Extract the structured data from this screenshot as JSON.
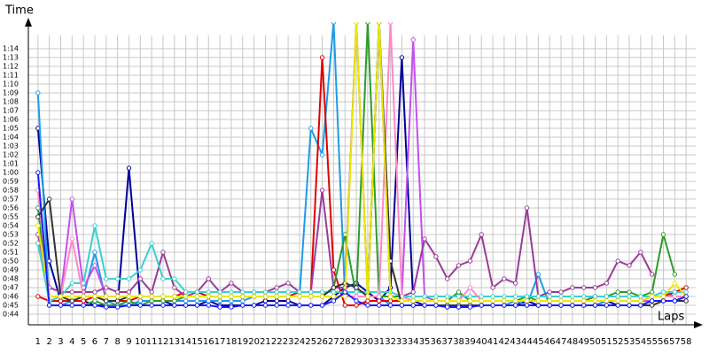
{
  "chart_data": {
    "type": "line",
    "y_label": "Time",
    "x_label": "Laps",
    "x": [
      1,
      2,
      3,
      4,
      5,
      6,
      7,
      8,
      9,
      10,
      11,
      12,
      13,
      14,
      15,
      16,
      17,
      18,
      19,
      20,
      21,
      22,
      23,
      24,
      25,
      26,
      27,
      28,
      29,
      30,
      31,
      32,
      33,
      34,
      35,
      36,
      37,
      38,
      39,
      40,
      41,
      42,
      43,
      44,
      45,
      46,
      47,
      48,
      49,
      50,
      51,
      52,
      53,
      54,
      55,
      56,
      57,
      58
    ],
    "xlim": [
      0,
      59
    ],
    "ylim": [
      43,
      77
    ],
    "grid": true,
    "yticks": [
      {
        "value": 44,
        "label": "0:44"
      },
      {
        "value": 45,
        "label": "0:45"
      },
      {
        "value": 46,
        "label": "0:46"
      },
      {
        "value": 47,
        "label": "0:47"
      },
      {
        "value": 48,
        "label": "0:48"
      },
      {
        "value": 49,
        "label": "0:49"
      },
      {
        "value": 50,
        "label": "0:50"
      },
      {
        "value": 51,
        "label": "0:51"
      },
      {
        "value": 52,
        "label": "0:52"
      },
      {
        "value": 53,
        "label": "0:53"
      },
      {
        "value": 54,
        "label": "0:54"
      },
      {
        "value": 55,
        "label": "0:55"
      },
      {
        "value": 56,
        "label": "0:56"
      },
      {
        "value": 57,
        "label": "0:57"
      },
      {
        "value": 58,
        "label": "0:58"
      },
      {
        "value": 59,
        "label": "0:59"
      },
      {
        "value": 60,
        "label": "1:00"
      },
      {
        "value": 61,
        "label": "1:01"
      },
      {
        "value": 62,
        "label": "1:02"
      },
      {
        "value": 63,
        "label": "1:03"
      },
      {
        "value": 64,
        "label": "1:04"
      },
      {
        "value": 65,
        "label": "1:05"
      },
      {
        "value": 66,
        "label": "1:06"
      },
      {
        "value": 67,
        "label": "1:07"
      },
      {
        "value": 68,
        "label": "1:08"
      },
      {
        "value": 69,
        "label": "1:09"
      },
      {
        "value": 70,
        "label": "1:10"
      },
      {
        "value": 71,
        "label": "1:11"
      },
      {
        "value": 72,
        "label": "1:12"
      },
      {
        "value": 73,
        "label": "1:13"
      },
      {
        "value": 74,
        "label": "1:14"
      }
    ],
    "series": [
      {
        "color": "#000099",
        "values": [
          65,
          50,
          45.5,
          45.5,
          45.5,
          45,
          45,
          45,
          60.5,
          45.5,
          45.5,
          45.5,
          45,
          45,
          45,
          45.5,
          45,
          45,
          45,
          45,
          45.5,
          45.5,
          45.5,
          45,
          45,
          45,
          46,
          47,
          47.5,
          46.5,
          45.5,
          47,
          73,
          45.5,
          45,
          45,
          44.8,
          44.8,
          45,
          45,
          45,
          45,
          45,
          45.5,
          45,
          45,
          45,
          45,
          45,
          45,
          45.5,
          45,
          45,
          45,
          45.5,
          45.5,
          45.5,
          46
        ]
      },
      {
        "color": "#1e9be6",
        "values": [
          69,
          45,
          45,
          45.5,
          46,
          51,
          45.5,
          45,
          45,
          45.5,
          45.5,
          45.5,
          45.5,
          45.5,
          45.5,
          45.5,
          45.5,
          45.5,
          45.5,
          46,
          46,
          46,
          46,
          46,
          65,
          62,
          77,
          46,
          46,
          46,
          46,
          45,
          45,
          45,
          45,
          45,
          45,
          45,
          45,
          45,
          45,
          45,
          45.5,
          45,
          48.5,
          45,
          45,
          45,
          45,
          45,
          45.5,
          45.5,
          45.5,
          45.5,
          46,
          46.5,
          46,
          null
        ]
      },
      {
        "color": "#e00000",
        "values": [
          46,
          45.5,
          45.5,
          45.5,
          45.5,
          46,
          45.5,
          45.5,
          45.5,
          46,
          46,
          46,
          46,
          46.5,
          46.5,
          46,
          46,
          46,
          46,
          46,
          46,
          46,
          46,
          46.5,
          46.5,
          73,
          49,
          45,
          45,
          45.5,
          45.5,
          45.5,
          45.5,
          45.5,
          45.5,
          45.5,
          45.5,
          45.5,
          45.5,
          45.5,
          45.5,
          45.5,
          45.5,
          45.5,
          45.5,
          45.5,
          45.5,
          45.5,
          45.5,
          46,
          46,
          46,
          46,
          46,
          46,
          46,
          46.5,
          47
        ]
      },
      {
        "color": "#c44ef0",
        "values": [
          52,
          46,
          46,
          57,
          47,
          49.5,
          46,
          46,
          46,
          46,
          46,
          46,
          46,
          46,
          46,
          46,
          46,
          46,
          46,
          46,
          46,
          46,
          46,
          46,
          46,
          46,
          46,
          46,
          46,
          46,
          46,
          46,
          46,
          75,
          46,
          45.5,
          45.5,
          45.5,
          45.5,
          45.5,
          45.5,
          45.5,
          45.5,
          45.5,
          45.5,
          45.5,
          45.5,
          45.5,
          45.5,
          45.5,
          45.5,
          45.5,
          45.5,
          45.5,
          45.5,
          45.5,
          45.5,
          45.5
        ]
      },
      {
        "color": "#9b3b9b",
        "values": [
          53,
          47,
          46.5,
          46.5,
          46.5,
          46.5,
          47,
          46.5,
          46.5,
          48,
          46.5,
          51,
          47,
          46,
          46.5,
          48,
          46.5,
          47.5,
          46.5,
          46.5,
          46.5,
          47,
          47.5,
          46.5,
          46.5,
          58,
          47,
          47,
          77,
          46,
          77,
          46,
          46,
          46.5,
          52.5,
          50.5,
          48,
          49.5,
          50,
          53,
          47,
          48,
          47.5,
          56,
          46,
          46.5,
          46.5,
          47,
          47,
          47,
          47.5,
          50,
          49.5,
          51,
          48.5,
          null,
          null,
          null
        ]
      },
      {
        "color": "#2e9b2e",
        "values": [
          56,
          45,
          45,
          45,
          45,
          45.5,
          45,
          45,
          45.5,
          45,
          45.5,
          45.5,
          45.5,
          46,
          46,
          46,
          46,
          46,
          46,
          46,
          46,
          46,
          46,
          46,
          46,
          46,
          47,
          53,
          46,
          77,
          46,
          46,
          46,
          45.5,
          45.5,
          45.5,
          45.5,
          46.5,
          45.5,
          45.5,
          45.5,
          45.5,
          45.5,
          46,
          45.5,
          45.5,
          45.5,
          45.5,
          45.5,
          46,
          46,
          46.5,
          46.5,
          46,
          46.5,
          53,
          48.5,
          null
        ]
      },
      {
        "color": "#3ad0d0",
        "values": [
          52,
          45.5,
          46,
          47.5,
          47.5,
          54,
          48,
          48,
          48,
          49,
          52,
          48,
          48,
          46.5,
          46.5,
          46.5,
          46.5,
          46.5,
          46.5,
          46.5,
          46.5,
          46.5,
          46.5,
          46.5,
          46.5,
          46.5,
          46.5,
          46.5,
          46.5,
          46.5,
          46.5,
          46.5,
          46,
          46,
          46,
          46,
          46,
          46,
          46,
          46,
          46,
          46,
          46,
          46,
          46,
          46,
          46,
          46,
          46,
          46,
          46,
          46,
          46,
          46,
          46,
          46.5,
          46.5,
          46.5
        ]
      },
      {
        "color": "#ff88c8",
        "values": [
          58,
          46,
          46,
          52.5,
          46,
          46,
          46,
          46,
          46,
          46,
          46,
          46,
          46,
          46,
          46,
          46,
          46,
          46,
          46,
          46,
          46,
          46,
          46,
          46,
          46,
          46,
          46,
          46,
          46,
          46,
          46,
          77,
          46,
          45.5,
          45.5,
          45.5,
          45.5,
          45.5,
          47,
          45.5,
          45.5,
          45.5,
          45.5,
          45.5,
          45.5,
          45.5,
          45.5,
          45.5,
          45.5,
          45.5,
          45.5,
          45.5,
          45.5,
          45.5,
          46,
          46,
          46,
          46
        ]
      },
      {
        "color": "#333333",
        "values": [
          55,
          57,
          46,
          45.5,
          46,
          46,
          45.5,
          45.5,
          46,
          46,
          46,
          46,
          46,
          46,
          46,
          46,
          46,
          46,
          46,
          46,
          46,
          46,
          46,
          46,
          46,
          46,
          47,
          47.5,
          47,
          46,
          77,
          50,
          45,
          45,
          45,
          45,
          45,
          45,
          45,
          45,
          45,
          45,
          45,
          45,
          45,
          45,
          45,
          45,
          45,
          45,
          45,
          45,
          45,
          45,
          45,
          45.5,
          45.5,
          45.5
        ]
      },
      {
        "color": "#e8e800",
        "values": [
          54,
          46,
          46,
          46,
          46,
          46,
          46,
          46,
          46,
          46,
          46,
          46,
          46,
          46,
          46,
          46,
          46,
          46,
          46,
          46,
          46,
          46,
          46,
          46,
          46,
          46,
          46,
          46,
          77,
          46,
          77,
          46,
          45.5,
          45.5,
          45.5,
          45.5,
          45.5,
          45.5,
          45.5,
          45.5,
          45.5,
          45.5,
          45.5,
          45.5,
          45.5,
          45.5,
          45.5,
          45.5,
          45.5,
          45.5,
          45.5,
          45.5,
          45.5,
          45.5,
          46,
          46,
          47.5,
          46
        ]
      },
      {
        "color": "#1a1aff",
        "values": [
          60,
          45,
          45,
          45,
          45,
          45,
          44.8,
          44.8,
          45,
          45,
          45,
          45,
          45,
          45,
          45,
          45,
          44.8,
          44.8,
          45,
          45,
          45,
          45,
          45,
          45,
          45,
          45,
          45.5,
          46.5,
          45.5,
          45,
          45,
          45,
          45,
          45,
          45,
          45,
          44.8,
          44.8,
          44.8,
          45,
          45,
          45,
          45,
          45,
          45,
          45,
          45,
          45,
          45,
          45,
          45,
          45,
          45,
          45,
          45.5,
          45.5,
          45.5,
          46
        ]
      }
    ]
  }
}
